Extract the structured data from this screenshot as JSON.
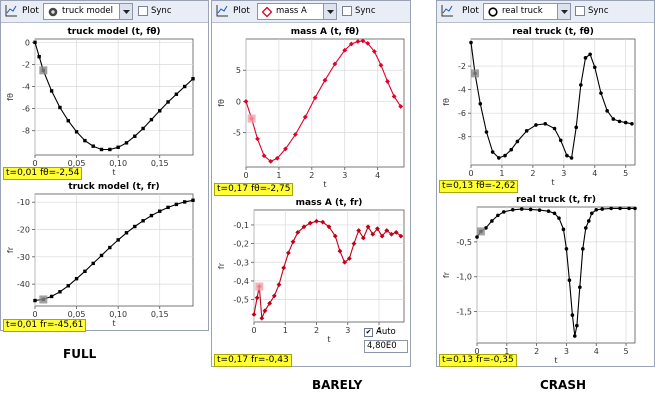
{
  "panels": [
    {
      "toolbar": {
        "plot_label": "Plot",
        "model": "truck model",
        "model_icon": "gear-dot-icon",
        "sync_label": "Sync"
      },
      "caption": "FULL",
      "readouts": [
        "t=0,01  fθ=-2,54",
        "t=0,01  fr=-45,61"
      ]
    },
    {
      "toolbar": {
        "plot_label": "Plot",
        "model": "mass A",
        "model_icon": "diamond-icon",
        "sync_label": "Sync"
      },
      "caption": "BARELY",
      "readouts": [
        "t=0,17  fθ=-2,75",
        "t=0,17  fr=-0,43"
      ],
      "auto": {
        "label": "Auto",
        "value": "4,80E0"
      }
    },
    {
      "toolbar": {
        "plot_label": "Plot",
        "model": "real truck",
        "model_icon": "circle-icon",
        "sync_label": "Sync"
      },
      "caption": "CRASH",
      "readouts": [
        "t=0,13  fθ=-2,62",
        "t=0,13  fr=-0,35"
      ]
    }
  ],
  "chart_data": [
    {
      "type": "scatter",
      "title": "truck model (t, fθ)",
      "xlabel": "t",
      "ylabel": "fθ",
      "xlim": [
        0,
        0.19
      ],
      "ylim": [
        -10.2,
        0.3
      ],
      "xticks": [
        0,
        0.05,
        0.1,
        0.15
      ],
      "xtick_labels": [
        "0",
        "0,05",
        "0,10",
        "0,15"
      ],
      "yticks": [
        0,
        -2,
        -4,
        -6,
        -8
      ],
      "ytick_labels": [
        "0",
        "-2",
        "-4",
        "-6",
        "-8"
      ],
      "color": "#000000",
      "marker": "square",
      "cursor": [
        0.01,
        -2.54
      ],
      "x": [
        0,
        0.005,
        0.01,
        0.02,
        0.03,
        0.04,
        0.05,
        0.06,
        0.07,
        0.08,
        0.09,
        0.1,
        0.11,
        0.12,
        0.13,
        0.14,
        0.15,
        0.16,
        0.17,
        0.18,
        0.19
      ],
      "y": [
        0,
        -1.3,
        -2.54,
        -4.4,
        -5.9,
        -7.1,
        -8.1,
        -8.9,
        -9.4,
        -9.7,
        -9.7,
        -9.5,
        -9.1,
        -8.5,
        -7.8,
        -7,
        -6.2,
        -5.4,
        -4.7,
        -4,
        -3.3
      ]
    },
    {
      "type": "scatter",
      "title": "truck model (t, fr)",
      "xlabel": "t",
      "ylabel": "fr",
      "xlim": [
        0,
        0.19
      ],
      "ylim": [
        -48,
        -7
      ],
      "xticks": [
        0,
        0.05,
        0.1,
        0.15
      ],
      "xtick_labels": [
        "0",
        "0,05",
        "0,10",
        "0,15"
      ],
      "yticks": [
        -10,
        -20,
        -30,
        -40
      ],
      "ytick_labels": [
        "-10",
        "-20",
        "-30",
        "-40"
      ],
      "color": "#000000",
      "marker": "square",
      "cursor": [
        0.01,
        -45.61
      ],
      "x": [
        0,
        0.01,
        0.02,
        0.03,
        0.04,
        0.05,
        0.06,
        0.07,
        0.08,
        0.09,
        0.1,
        0.11,
        0.12,
        0.13,
        0.14,
        0.15,
        0.16,
        0.17,
        0.18,
        0.19
      ],
      "y": [
        -46,
        -45.6,
        -44.5,
        -42.8,
        -40.6,
        -38,
        -35.3,
        -32.4,
        -29.5,
        -26.6,
        -23.8,
        -21.2,
        -18.9,
        -16.8,
        -14.9,
        -13.3,
        -11.9,
        -10.8,
        -9.9,
        -9.3
      ]
    },
    {
      "type": "scatter",
      "title": "mass A (t, fθ)",
      "xlabel": "t",
      "ylabel": "fθ",
      "xlim": [
        0,
        4.8
      ],
      "ylim": [
        -10.5,
        10
      ],
      "xticks": [
        0,
        1,
        2,
        3,
        4
      ],
      "xtick_labels": [
        "0",
        "1",
        "2",
        "3",
        "4"
      ],
      "yticks": [
        5,
        0,
        -5
      ],
      "ytick_labels": [
        "5",
        "0",
        "-5"
      ],
      "color": "#e0002a",
      "marker": "diamond",
      "cursor": [
        0.17,
        -2.75
      ],
      "x": [
        0,
        0.17,
        0.35,
        0.55,
        0.75,
        0.95,
        1.2,
        1.5,
        1.8,
        2.1,
        2.4,
        2.7,
        3,
        3.2,
        3.4,
        3.55,
        3.7,
        3.9,
        4.1,
        4.3,
        4.5,
        4.7
      ],
      "y": [
        0,
        -2.75,
        -6,
        -8.7,
        -9.6,
        -9.1,
        -7.6,
        -5.3,
        -2.5,
        0.6,
        3.4,
        6,
        8.2,
        9.2,
        9.6,
        9.7,
        9.3,
        8,
        5.8,
        3.2,
        0.8,
        -0.8
      ]
    },
    {
      "type": "scatter",
      "title": "mass A (t, fr)",
      "xlabel": "t",
      "ylabel": "fr",
      "xlim": [
        0,
        4.8
      ],
      "ylim": [
        -0.62,
        -0.02
      ],
      "xticks": [
        0,
        1,
        2,
        3,
        4
      ],
      "xtick_labels": [
        "0",
        "1",
        "2",
        "3",
        "4"
      ],
      "yticks": [
        -0.1,
        -0.2,
        -0.3,
        -0.4,
        -0.5
      ],
      "ytick_labels": [
        "-0,1",
        "-0,2",
        "-0,3",
        "-0,4",
        "-0,5"
      ],
      "color": "#c00018",
      "marker": "diamond",
      "cursor": [
        0.17,
        -0.43
      ],
      "x": [
        0,
        0.1,
        0.17,
        0.25,
        0.35,
        0.5,
        0.65,
        0.8,
        0.95,
        1.1,
        1.25,
        1.4,
        1.6,
        1.8,
        2,
        2.2,
        2.4,
        2.6,
        2.75,
        2.9,
        3.05,
        3.2,
        3.35,
        3.5,
        3.65,
        3.8,
        3.95,
        4.1,
        4.25,
        4.4,
        4.55,
        4.7
      ],
      "y": [
        -0.58,
        -0.49,
        -0.43,
        -0.6,
        -0.56,
        -0.52,
        -0.48,
        -0.42,
        -0.33,
        -0.25,
        -0.19,
        -0.14,
        -0.11,
        -0.09,
        -0.08,
        -0.085,
        -0.11,
        -0.16,
        -0.24,
        -0.3,
        -0.28,
        -0.2,
        -0.13,
        -0.17,
        -0.11,
        -0.15,
        -0.12,
        -0.16,
        -0.13,
        -0.15,
        -0.14,
        -0.16
      ]
    },
    {
      "type": "scatter",
      "title": "real truck (t, fθ)",
      "xlabel": "t",
      "ylabel": "fθ",
      "xlim": [
        0,
        5.3
      ],
      "ylim": [
        -10.4,
        0.3
      ],
      "xticks": [
        0,
        1,
        2,
        3,
        4,
        5
      ],
      "xtick_labels": [
        "0",
        "1",
        "2",
        "3",
        "4",
        "5"
      ],
      "yticks": [
        -2,
        -4,
        -6,
        -8
      ],
      "ytick_labels": [
        "-2",
        "-4",
        "-6",
        "-8"
      ],
      "color": "#000000",
      "marker": "circle",
      "cursor": [
        0.13,
        -2.62
      ],
      "x": [
        0,
        0.13,
        0.3,
        0.5,
        0.7,
        0.9,
        1.1,
        1.3,
        1.5,
        1.8,
        2.1,
        2.4,
        2.7,
        2.9,
        3.1,
        3.25,
        3.4,
        3.55,
        3.7,
        3.85,
        4,
        4.2,
        4.4,
        4.6,
        4.8,
        5,
        5.2
      ],
      "y": [
        0,
        -2.62,
        -5.2,
        -7.6,
        -9.3,
        -9.8,
        -9.6,
        -9.1,
        -8.4,
        -7.5,
        -7,
        -6.9,
        -7.3,
        -8.3,
        -9.6,
        -9.8,
        -7.2,
        -3.6,
        -1.3,
        -1,
        -2.1,
        -4.3,
        -5.8,
        -6.5,
        -6.7,
        -6.8,
        -6.9
      ]
    },
    {
      "type": "scatter",
      "title": "real truck (t, fr)",
      "xlabel": "t",
      "ylabel": "fr",
      "xlim": [
        0,
        5.3
      ],
      "ylim": [
        -1.95,
        0
      ],
      "xticks": [
        0,
        1,
        2,
        3,
        4,
        5
      ],
      "xtick_labels": [
        "0",
        "1",
        "2",
        "3",
        "4",
        "5"
      ],
      "yticks": [
        -0.5,
        -1,
        -1.5
      ],
      "ytick_labels": [
        "-0,5",
        "-1,0",
        "-1,5"
      ],
      "color": "#000000",
      "marker": "circle",
      "cursor": [
        0.13,
        -0.35
      ],
      "x": [
        0,
        0.13,
        0.3,
        0.5,
        0.7,
        0.9,
        1.2,
        1.5,
        1.8,
        2.1,
        2.4,
        2.6,
        2.75,
        2.9,
        3,
        3.1,
        3.2,
        3.28,
        3.35,
        3.45,
        3.55,
        3.65,
        3.75,
        3.85,
        4,
        4.2,
        4.5,
        4.8,
        5.1,
        5.3
      ],
      "y": [
        -0.43,
        -0.35,
        -0.3,
        -0.2,
        -0.12,
        -0.07,
        -0.04,
        -0.03,
        -0.035,
        -0.045,
        -0.06,
        -0.09,
        -0.16,
        -0.32,
        -0.6,
        -1.05,
        -1.55,
        -1.85,
        -1.7,
        -1.15,
        -0.6,
        -0.3,
        -0.2,
        -0.09,
        -0.04,
        -0.03,
        -0.02,
        -0.02,
        -0.02,
        -0.02
      ]
    }
  ]
}
